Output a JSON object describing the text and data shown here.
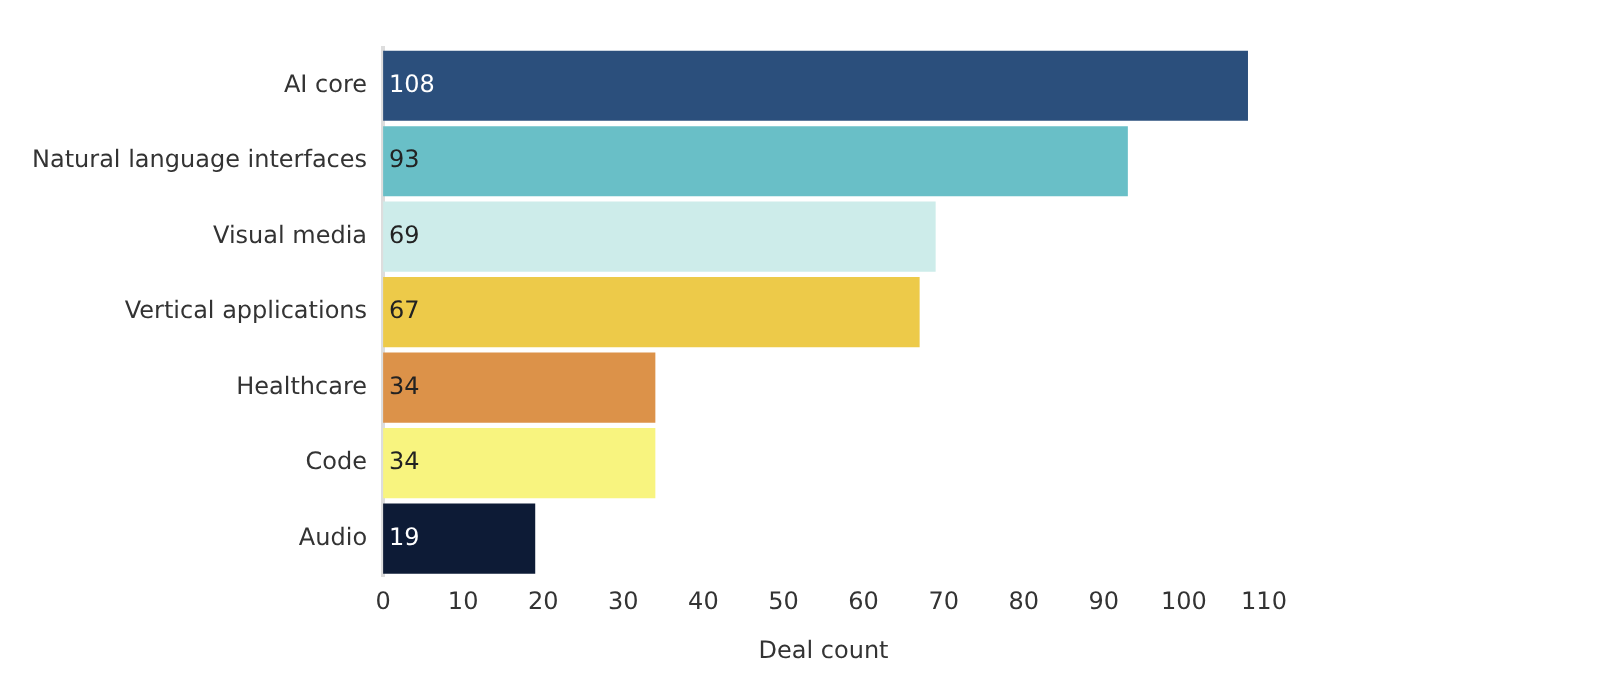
{
  "chart_data": {
    "type": "bar",
    "orientation": "horizontal",
    "xlabel": "Deal count",
    "categories": [
      "AI core",
      "Natural language interfaces",
      "Visual media",
      "Vertical applications",
      "Healthcare",
      "Code",
      "Audio"
    ],
    "values": [
      108,
      93,
      69,
      67,
      34,
      34,
      19
    ],
    "colors": [
      "#2b4f7c",
      "#69bfc7",
      "#cdecea",
      "#edca49",
      "#dc9249",
      "#f8f47f",
      "#0d1b36"
    ],
    "xlim": [
      0,
      110
    ],
    "xticks": [
      0,
      10,
      20,
      30,
      40,
      50,
      60,
      70,
      80,
      90,
      100,
      110
    ],
    "grid": false,
    "legend": false,
    "data_labels": true
  }
}
